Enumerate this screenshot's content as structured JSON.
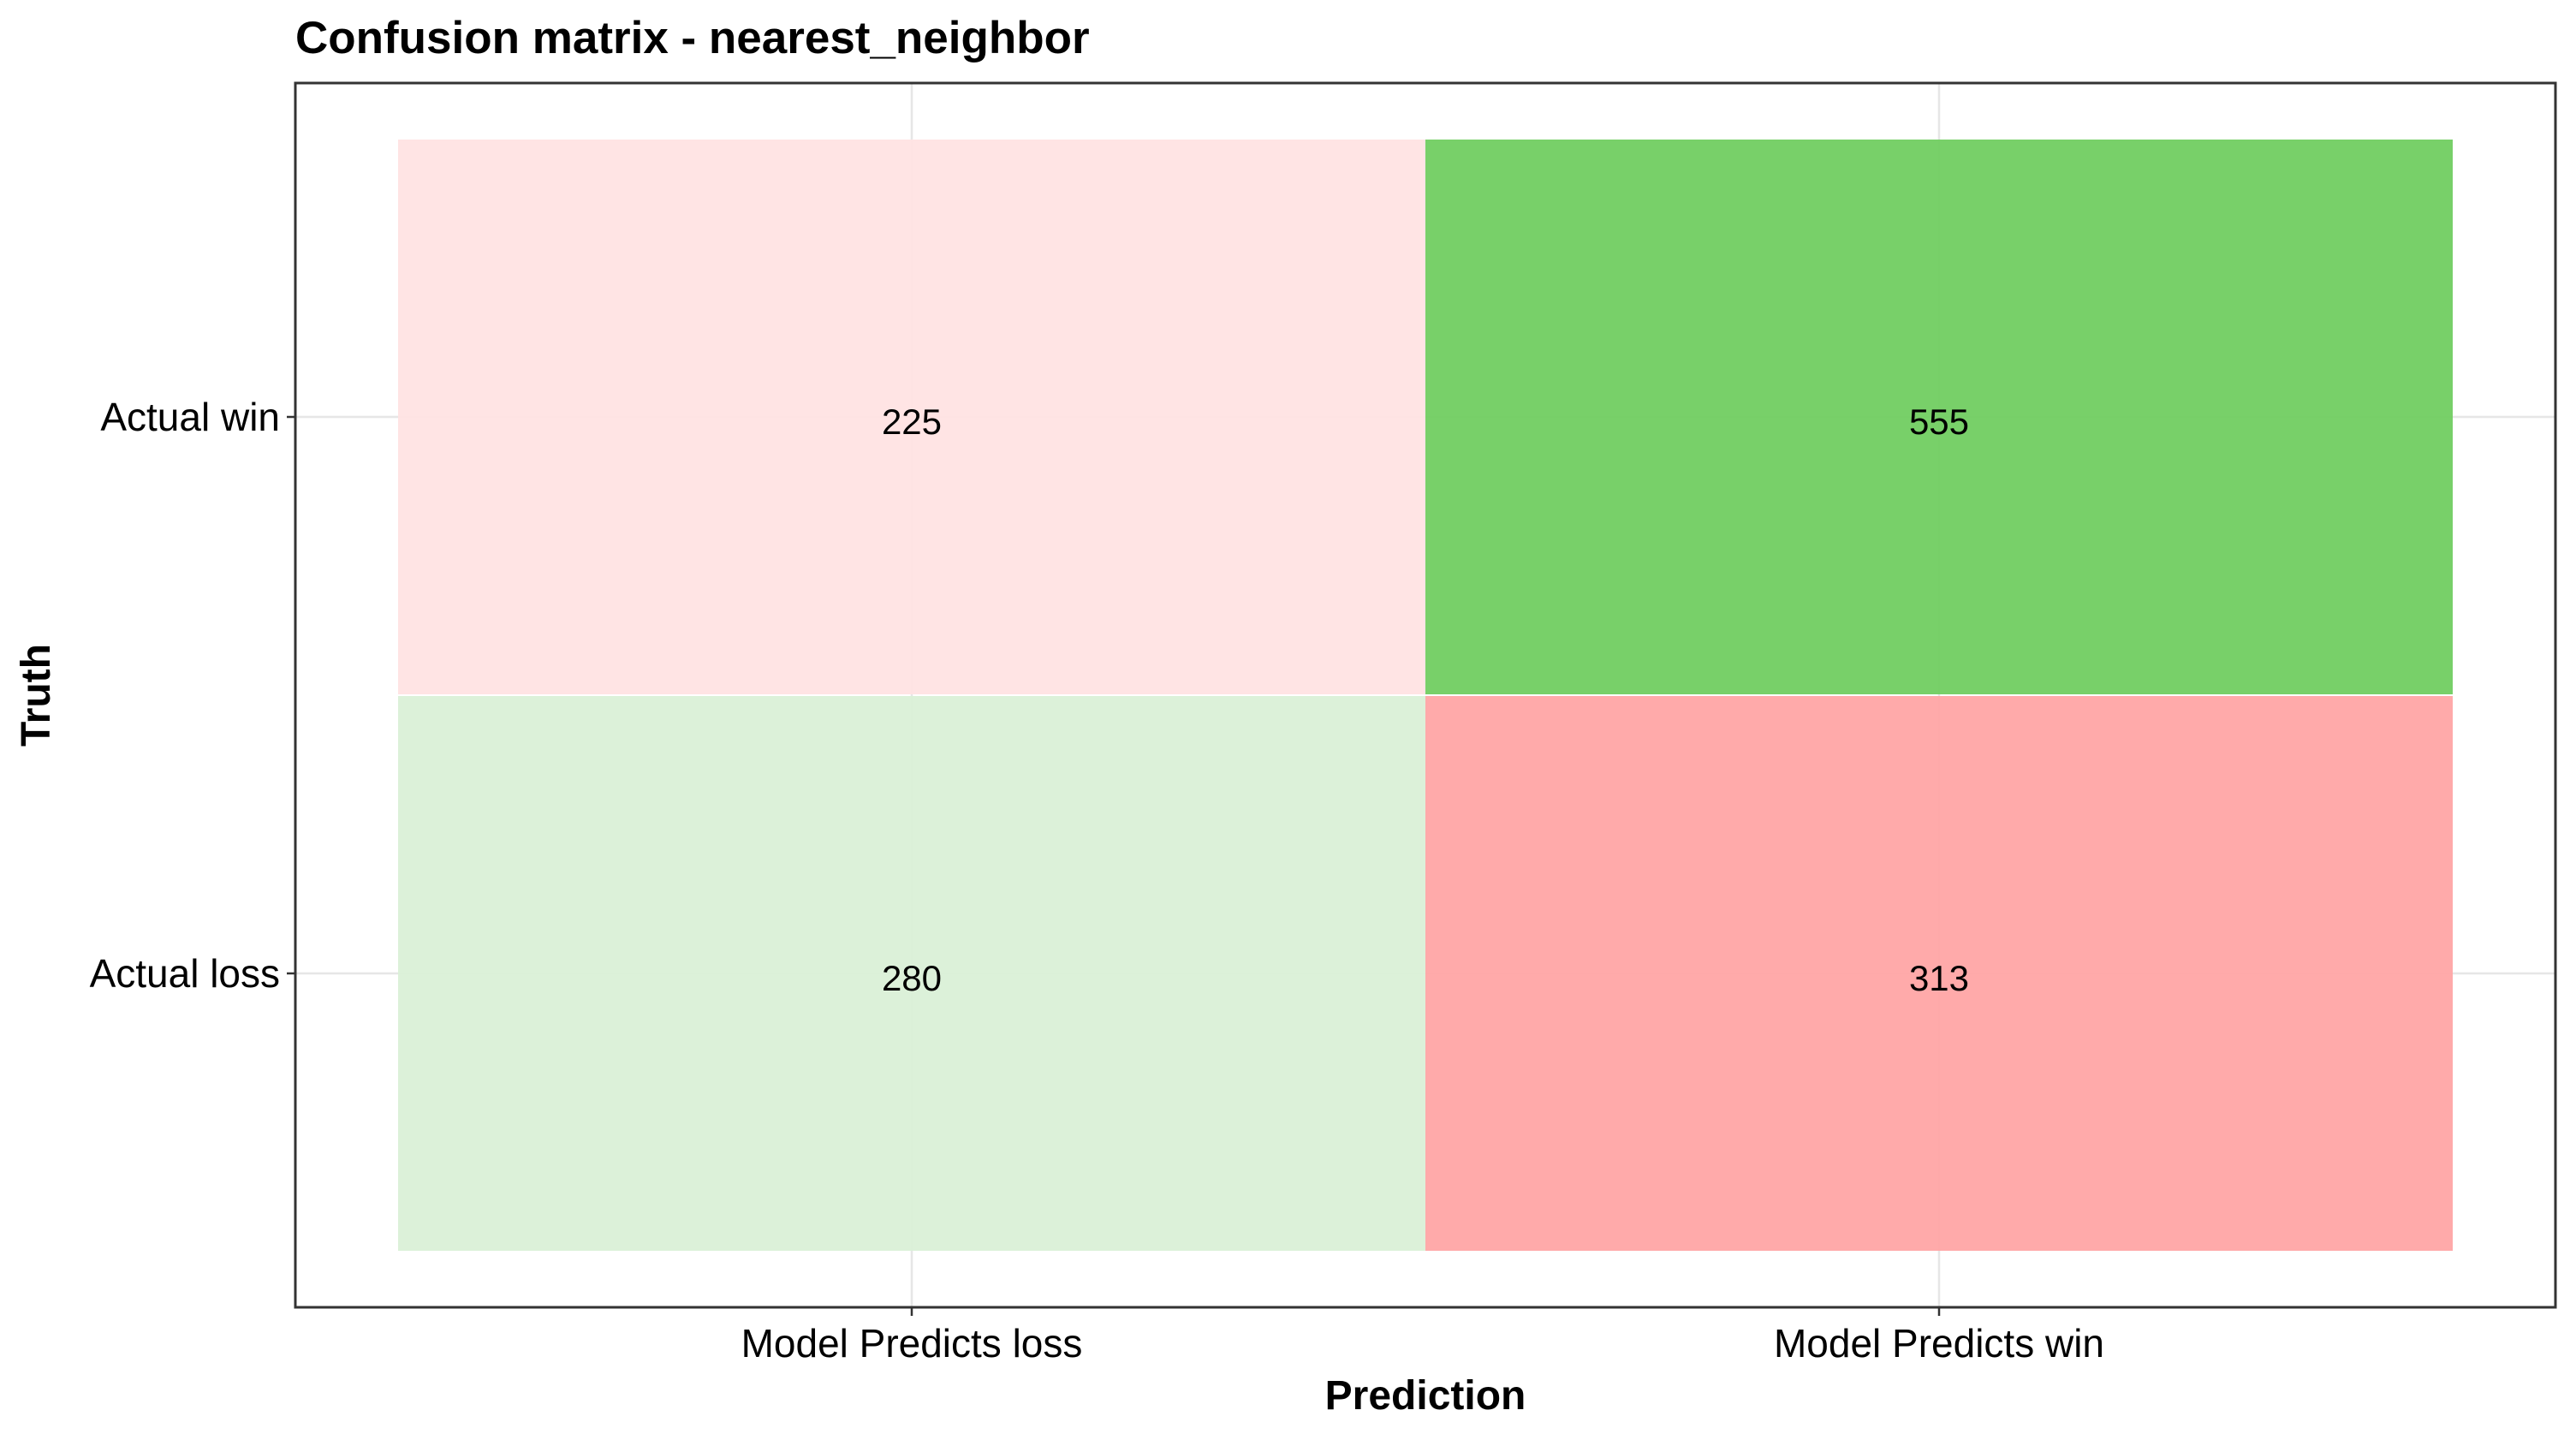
{
  "chart_data": {
    "type": "heatmap",
    "title": "Confusion matrix - nearest_neighbor",
    "xlabel": "Prediction",
    "ylabel": "Truth",
    "x_categories": [
      "Model Predicts loss",
      "Model Predicts win"
    ],
    "y_categories": [
      "Actual loss",
      "Actual win"
    ],
    "cells": [
      {
        "x": "Model Predicts loss",
        "y": "Actual win",
        "value": 225,
        "color": "#FFE3E3"
      },
      {
        "x": "Model Predicts win",
        "y": "Actual win",
        "value": 555,
        "color": "#72CE63"
      },
      {
        "x": "Model Predicts loss",
        "y": "Actual loss",
        "value": 280,
        "color": "#DBF0D7"
      },
      {
        "x": "Model Predicts win",
        "y": "Actual loss",
        "value": 313,
        "color": "#FFA7A7"
      }
    ],
    "grid": true,
    "legend": "none"
  }
}
